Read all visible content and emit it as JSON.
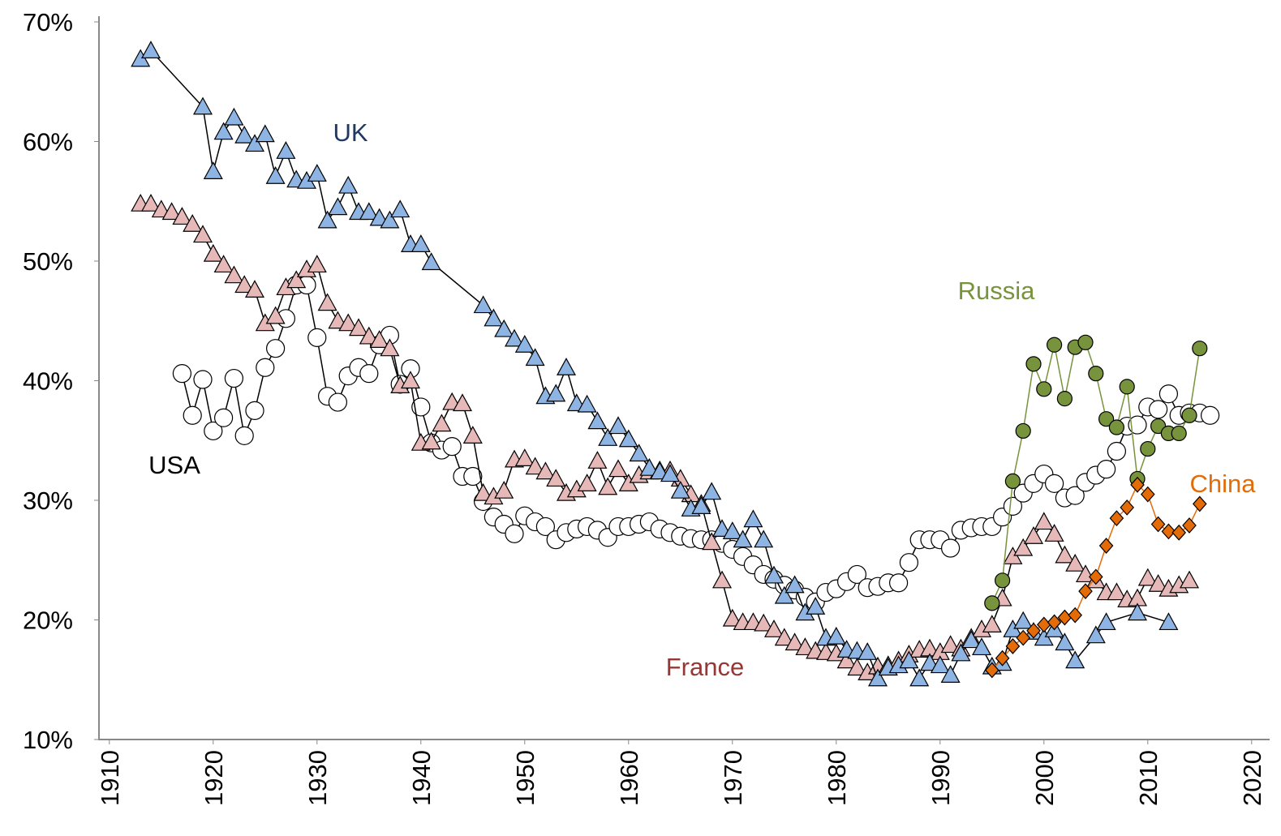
{
  "chart_data": {
    "type": "line",
    "xlim": [
      1909,
      2021
    ],
    "xticks": [
      1910,
      1920,
      1930,
      1940,
      1950,
      1960,
      1970,
      1980,
      1990,
      2000,
      2010,
      2020
    ],
    "ylim": [
      10,
      70
    ],
    "yticks": [
      {
        "value": 10,
        "label": "10%"
      },
      {
        "value": 20,
        "label": "20%"
      },
      {
        "value": 30,
        "label": "30%"
      },
      {
        "value": 40,
        "label": "40%"
      },
      {
        "value": 50,
        "label": "50%"
      },
      {
        "value": 60,
        "label": "60%"
      },
      {
        "value": 70,
        "label": "70%"
      }
    ],
    "series": [
      {
        "name": "USA",
        "marker": "circle",
        "color": "#ffffff",
        "line_color": "#000000",
        "label_color": "#000000",
        "x": [
          1917,
          1918,
          1919,
          1920,
          1921,
          1922,
          1923,
          1924,
          1925,
          1926,
          1927,
          1928,
          1929,
          1930,
          1931,
          1932,
          1933,
          1934,
          1935,
          1936,
          1937,
          1938,
          1939,
          1940,
          1941,
          1942,
          1943,
          1944,
          1945,
          1946,
          1947,
          1948,
          1949,
          1950,
          1951,
          1952,
          1953,
          1954,
          1955,
          1956,
          1957,
          1958,
          1959,
          1960,
          1961,
          1962,
          1963,
          1964,
          1965,
          1966,
          1967,
          1968,
          1969,
          1970,
          1971,
          1972,
          1973,
          1974,
          1975,
          1976,
          1977,
          1978,
          1979,
          1980,
          1981,
          1982,
          1983,
          1984,
          1985,
          1986,
          1987,
          1988,
          1989,
          1990,
          1991,
          1992,
          1993,
          1994,
          1995,
          1996,
          1997,
          1998,
          1999,
          2000,
          2001,
          2002,
          2003,
          2004,
          2005,
          2006,
          2007,
          2008,
          2009,
          2010,
          2011,
          2012,
          2013,
          2014,
          2015,
          2016
        ],
        "values": [
          40.6,
          37.1,
          40.1,
          35.8,
          36.9,
          40.2,
          35.4,
          37.5,
          41.1,
          42.7,
          45.2,
          48.0,
          48.0,
          43.6,
          38.7,
          38.2,
          40.4,
          41.1,
          40.6,
          43.0,
          43.8,
          39.7,
          41.0,
          37.8,
          34.8,
          34.2,
          34.5,
          32.0,
          32.0,
          29.9,
          28.6,
          28.0,
          27.2,
          28.7,
          28.2,
          27.8,
          26.7,
          27.3,
          27.6,
          27.8,
          27.5,
          26.9,
          27.8,
          27.8,
          28.0,
          28.2,
          27.6,
          27.3,
          27.0,
          26.8,
          26.7,
          26.7,
          26.4,
          25.9,
          25.3,
          24.6,
          23.8,
          23.4,
          22.9,
          22.5,
          21.9,
          21.5,
          22.3,
          22.6,
          23.2,
          23.8,
          22.7,
          22.8,
          23.1,
          23.1,
          24.8,
          26.7,
          26.7,
          26.7,
          26.0,
          27.5,
          27.7,
          27.8,
          27.8,
          28.6,
          29.5,
          30.6,
          31.4,
          32.2,
          31.4,
          30.2,
          30.4,
          31.5,
          32.1,
          32.6,
          34.1,
          36.2,
          36.3,
          37.8,
          37.6,
          38.9,
          37.1,
          37.3,
          37.3,
          37.1
        ]
      },
      {
        "name": "France",
        "marker": "triangle",
        "color": "#e6b9b8",
        "line_color": "#000000",
        "label_color": "#953735",
        "x": [
          1913,
          1914,
          1915,
          1916,
          1917,
          1918,
          1919,
          1920,
          1921,
          1922,
          1923,
          1924,
          1925,
          1926,
          1927,
          1928,
          1929,
          1930,
          1931,
          1932,
          1933,
          1934,
          1935,
          1936,
          1937,
          1938,
          1939,
          1940,
          1941,
          1942,
          1943,
          1944,
          1945,
          1946,
          1947,
          1948,
          1949,
          1950,
          1951,
          1952,
          1953,
          1954,
          1955,
          1956,
          1957,
          1958,
          1959,
          1960,
          1961,
          1962,
          1963,
          1964,
          1965,
          1966,
          1967,
          1968,
          1969,
          1970,
          1971,
          1972,
          1973,
          1974,
          1975,
          1976,
          1977,
          1978,
          1979,
          1980,
          1981,
          1982,
          1983,
          1984,
          1985,
          1986,
          1987,
          1988,
          1989,
          1990,
          1991,
          1992,
          1993,
          1994,
          1995,
          1996,
          1997,
          1998,
          1999,
          2000,
          2001,
          2002,
          2003,
          2004,
          2005,
          2006,
          2007,
          2008,
          2009,
          2010,
          2011,
          2012,
          2013,
          2014
        ],
        "values": [
          54.8,
          54.8,
          54.3,
          54.1,
          53.7,
          53.1,
          52.2,
          50.6,
          49.7,
          48.8,
          48.0,
          47.6,
          44.8,
          45.4,
          47.8,
          48.4,
          49.3,
          49.7,
          46.5,
          45.0,
          44.8,
          44.4,
          43.7,
          43.4,
          42.7,
          39.6,
          40.0,
          34.8,
          34.9,
          36.4,
          38.2,
          38.1,
          35.4,
          30.6,
          30.3,
          30.8,
          33.4,
          33.5,
          32.8,
          32.4,
          31.8,
          30.6,
          30.9,
          31.4,
          33.3,
          31.1,
          32.6,
          31.4,
          32.1,
          32.4,
          32.5,
          32.5,
          31.8,
          30.5,
          29.7,
          26.5,
          23.3,
          20.1,
          19.8,
          19.8,
          19.7,
          19.2,
          18.5,
          18.1,
          17.7,
          17.4,
          17.3,
          17.2,
          16.6,
          16.0,
          15.6,
          16.1,
          16.2,
          16.6,
          17.1,
          17.5,
          17.6,
          17.3,
          17.9,
          17.6,
          18.5,
          19.2,
          19.6,
          21.8,
          25.3,
          26.0,
          27.0,
          28.2,
          27.2,
          25.4,
          24.7,
          23.8,
          23.3,
          22.3,
          22.3,
          21.7,
          21.8,
          23.5,
          23.0,
          22.6,
          22.9,
          23.3
        ]
      },
      {
        "name": "UK",
        "marker": "triangle",
        "color": "#8db4e2",
        "line_color": "#000000",
        "label_color": "#1f3864",
        "x": [
          1913,
          1914,
          1919,
          1920,
          1921,
          1922,
          1923,
          1924,
          1925,
          1926,
          1927,
          1928,
          1929,
          1930,
          1931,
          1932,
          1933,
          1934,
          1935,
          1936,
          1937,
          1938,
          1939,
          1940,
          1941,
          1946,
          1947,
          1948,
          1949,
          1950,
          1951,
          1952,
          1953,
          1954,
          1955,
          1956,
          1957,
          1958,
          1959,
          1960,
          1961,
          1962,
          1963,
          1964,
          1965,
          1966,
          1967,
          1968,
          1969,
          1970,
          1971,
          1972,
          1973,
          1974,
          1975,
          1976,
          1977,
          1978,
          1979,
          1980,
          1981,
          1982,
          1983,
          1984,
          1985,
          1986,
          1987,
          1988,
          1989,
          1990,
          1991,
          1992,
          1993,
          1994,
          1995,
          1996,
          1997,
          1998,
          1999,
          2000,
          2001,
          2002,
          2003,
          2005,
          2006,
          2009,
          2012
        ],
        "values": [
          66.9,
          67.6,
          62.9,
          57.5,
          60.8,
          62.0,
          60.5,
          59.8,
          60.6,
          57.1,
          59.2,
          56.8,
          56.7,
          57.3,
          53.4,
          54.5,
          56.3,
          54.1,
          54.1,
          53.6,
          53.4,
          54.3,
          51.4,
          51.4,
          49.9,
          46.3,
          45.2,
          44.3,
          43.5,
          43.0,
          41.9,
          38.7,
          38.9,
          41.1,
          38.1,
          38.0,
          36.6,
          35.2,
          36.2,
          35.1,
          33.9,
          32.7,
          32.4,
          32.2,
          30.8,
          29.3,
          29.5,
          30.7,
          27.6,
          27.4,
          26.7,
          28.4,
          26.7,
          23.7,
          22.0,
          22.9,
          20.6,
          21.1,
          18.5,
          18.6,
          17.5,
          17.4,
          17.3,
          15.1,
          16.0,
          16.2,
          16.6,
          15.1,
          16.4,
          16.2,
          15.4,
          17.2,
          18.3,
          17.7,
          16.1,
          16.4,
          19.2,
          19.9,
          19.0,
          18.5,
          19.2,
          18.1,
          16.6,
          18.7,
          19.8,
          20.6,
          19.8
        ]
      },
      {
        "name": "Russia",
        "marker": "dot",
        "color": "#77933c",
        "line_color": "#77933c",
        "label_color": "#77933c",
        "x": [
          1995,
          1996,
          1997,
          1998,
          1999,
          2000,
          2001,
          2002,
          2003,
          2004,
          2005,
          2006,
          2007,
          2008,
          2009,
          2010,
          2011,
          2012,
          2013,
          2014,
          2015
        ],
        "values": [
          21.4,
          23.3,
          31.6,
          35.8,
          41.4,
          39.3,
          43.0,
          38.5,
          42.8,
          43.2,
          40.6,
          36.8,
          36.1,
          39.5,
          31.8,
          34.3,
          36.2,
          35.6,
          35.6,
          37.1,
          42.7
        ]
      },
      {
        "name": "China",
        "marker": "diamond",
        "color": "#e36c09",
        "line_color": "#e36c09",
        "label_color": "#e36c09",
        "x": [
          1995,
          1996,
          1997,
          1998,
          1999,
          2000,
          2001,
          2002,
          2003,
          2004,
          2005,
          2006,
          2007,
          2008,
          2009,
          2010,
          2011,
          2012,
          2013,
          2014,
          2015
        ],
        "values": [
          15.8,
          16.8,
          17.8,
          18.5,
          19.1,
          19.6,
          19.8,
          20.2,
          20.4,
          22.4,
          23.6,
          26.2,
          28.5,
          29.4,
          31.3,
          30.5,
          28.0,
          27.4,
          27.3,
          27.9,
          29.7
        ]
      }
    ]
  }
}
